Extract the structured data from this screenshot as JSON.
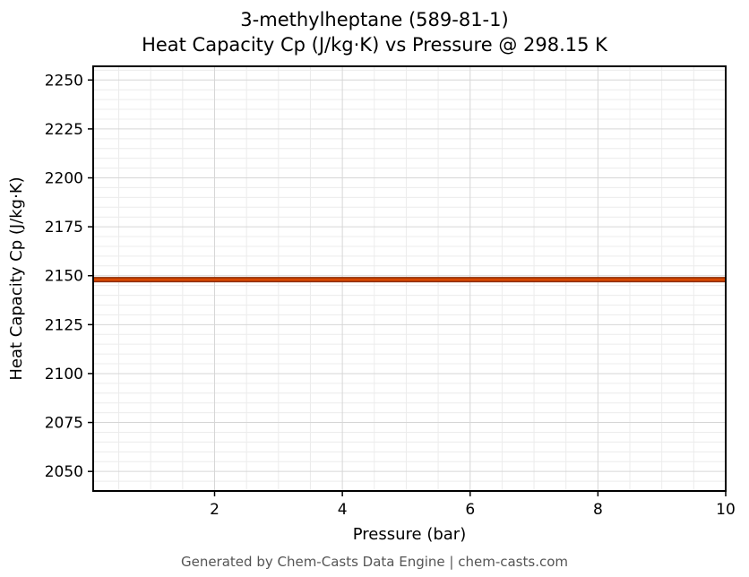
{
  "title": {
    "line1": "3-methylheptane (589-81-1)",
    "line2": "Heat Capacity Cp (J/kg·K) vs Pressure @ 298.15 K"
  },
  "footer": {
    "text": "Generated by Chem-Casts Data Engine | chem-casts.com"
  },
  "chart_data": {
    "type": "line",
    "title": "3-methylheptane (589-81-1) — Heat Capacity Cp (J/kg·K) vs Pressure @ 298.15 K",
    "xlabel": "Pressure (bar)",
    "ylabel": "Heat Capacity Cp (J/kg·K)",
    "xlim": [
      0.1,
      10
    ],
    "ylim": [
      2040,
      2257
    ],
    "x_ticks": [
      2,
      4,
      6,
      8,
      10
    ],
    "y_ticks": [
      2050,
      2075,
      2100,
      2125,
      2150,
      2175,
      2200,
      2225,
      2250
    ],
    "x_minor_step": 0.5,
    "y_minor_step": 5,
    "grid": true,
    "legend": "none",
    "series": [
      {
        "name": "Cp",
        "x": [
          0.1,
          1,
          2,
          3,
          4,
          5,
          6,
          7,
          8,
          9,
          10
        ],
        "y": [
          2148,
          2148,
          2148,
          2148,
          2148,
          2148,
          2148,
          2148,
          2148,
          2148,
          2148
        ],
        "color": "#d94801",
        "edge_color": "#8c2d04"
      }
    ],
    "colors": {
      "major_grid": "#d6d6d6",
      "minor_grid": "#ececec",
      "axis": "#000000",
      "tick_label": "#000000",
      "plot_background": "#ffffff"
    }
  }
}
